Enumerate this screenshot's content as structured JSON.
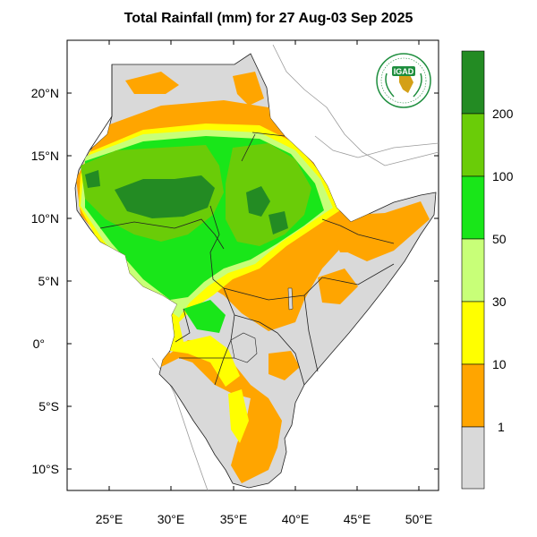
{
  "title": "Total Rainfall (mm) for 27 Aug-03 Sep 2025",
  "map": {
    "lon_ticks": [
      "25°E",
      "30°E",
      "35°E",
      "40°E",
      "45°E",
      "50°E"
    ],
    "lat_ticks": [
      "20°N",
      "15°N",
      "10°N",
      "5°N",
      "0°",
      "5°S",
      "10°S"
    ]
  },
  "legend": {
    "levels": [
      "200",
      "100",
      "50",
      "30",
      "10",
      "1"
    ],
    "colors": [
      "#238b23",
      "#6acc08",
      "#19e619",
      "#c8ff78",
      "#ffff00",
      "#ffa500",
      "#d9d9d9"
    ]
  },
  "logo": {
    "text": "IGAD",
    "background_color": "#1e8e3e"
  },
  "colors": {
    "land_dry": "#d9d9d9",
    "light_rain": "#ffa500",
    "moderate_rain": "#ffff00",
    "rain_30": "#c8ff78",
    "rain_50": "#19e619",
    "rain_100": "#6acc08",
    "rain_200": "#238b23"
  }
}
